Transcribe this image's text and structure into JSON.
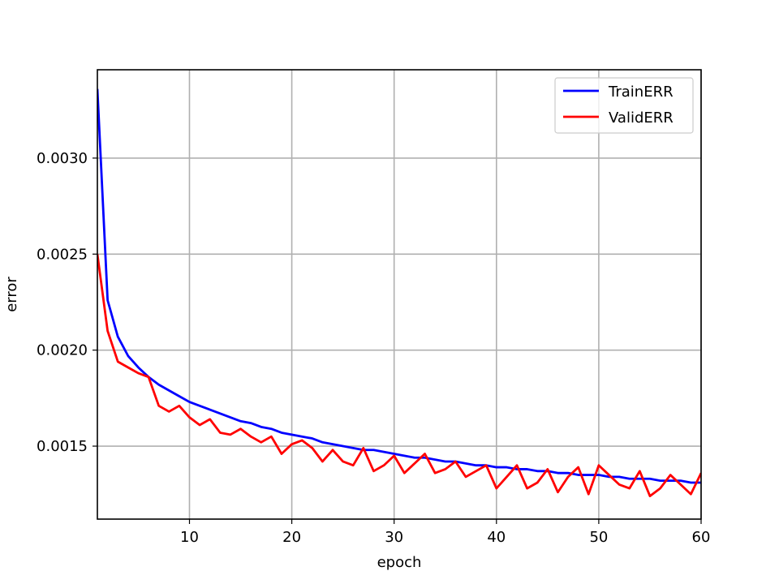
{
  "chart_data": {
    "type": "line",
    "xlabel": "epoch",
    "ylabel": "error",
    "xlim": [
      1,
      60
    ],
    "ylim": [
      0.00112,
      0.00346
    ],
    "xticks": [
      10,
      20,
      30,
      40,
      50,
      60
    ],
    "yticks": [
      0.0015,
      0.002,
      0.0025,
      0.003
    ],
    "ytick_labels": [
      "0.0015",
      "0.0020",
      "0.0025",
      "0.0030"
    ],
    "grid": true,
    "legend_position": "top-right",
    "x": [
      1,
      2,
      3,
      4,
      5,
      6,
      7,
      8,
      9,
      10,
      11,
      12,
      13,
      14,
      15,
      16,
      17,
      18,
      19,
      20,
      21,
      22,
      23,
      24,
      25,
      26,
      27,
      28,
      29,
      30,
      31,
      32,
      33,
      34,
      35,
      36,
      37,
      38,
      39,
      40,
      41,
      42,
      43,
      44,
      45,
      46,
      47,
      48,
      49,
      50,
      51,
      52,
      53,
      54,
      55,
      56,
      57,
      58,
      59,
      60
    ],
    "series": [
      {
        "name": "TrainERR",
        "color": "#0000ff",
        "values": [
          0.00336,
          0.00226,
          0.00207,
          0.00197,
          0.00191,
          0.00186,
          0.00182,
          0.00179,
          0.00176,
          0.00173,
          0.00171,
          0.00169,
          0.00167,
          0.00165,
          0.00163,
          0.00162,
          0.0016,
          0.00159,
          0.00157,
          0.00156,
          0.00155,
          0.00154,
          0.00152,
          0.00151,
          0.0015,
          0.00149,
          0.00148,
          0.00148,
          0.00147,
          0.00146,
          0.00145,
          0.00144,
          0.00144,
          0.00143,
          0.00142,
          0.00142,
          0.00141,
          0.0014,
          0.0014,
          0.00139,
          0.00139,
          0.00138,
          0.00138,
          0.00137,
          0.00137,
          0.00136,
          0.00136,
          0.00135,
          0.00135,
          0.00135,
          0.00134,
          0.00134,
          0.00133,
          0.00133,
          0.00133,
          0.00132,
          0.00132,
          0.00132,
          0.00131,
          0.00131
        ]
      },
      {
        "name": "ValidERR",
        "color": "#ff0000",
        "values": [
          0.0025,
          0.0021,
          0.00194,
          0.00191,
          0.00188,
          0.00186,
          0.00171,
          0.00168,
          0.00171,
          0.00165,
          0.00161,
          0.00164,
          0.00157,
          0.00156,
          0.00159,
          0.00155,
          0.00152,
          0.00155,
          0.00146,
          0.00151,
          0.00153,
          0.00149,
          0.00142,
          0.00148,
          0.00142,
          0.0014,
          0.00149,
          0.00137,
          0.0014,
          0.00145,
          0.00136,
          0.00141,
          0.00146,
          0.00136,
          0.00138,
          0.00142,
          0.00134,
          0.00137,
          0.0014,
          0.00128,
          0.00134,
          0.0014,
          0.00128,
          0.00131,
          0.00138,
          0.00126,
          0.00134,
          0.00139,
          0.00125,
          0.0014,
          0.00135,
          0.0013,
          0.00128,
          0.00137,
          0.00124,
          0.00128,
          0.00135,
          0.0013,
          0.00125,
          0.00136
        ]
      }
    ]
  }
}
